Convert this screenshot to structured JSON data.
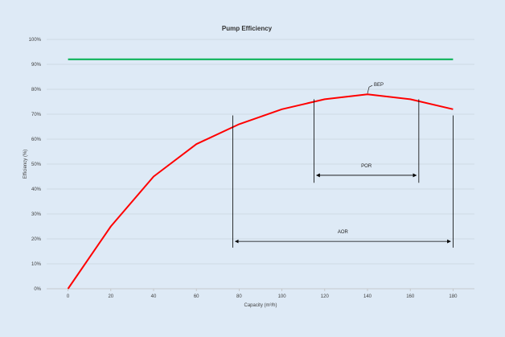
{
  "chart_data": {
    "type": "line",
    "title": "Pump Efficiency",
    "xlabel": "Capacity (m³/h)",
    "ylabel": "Efficiency (%)",
    "xlim": [
      -10,
      190
    ],
    "ylim": [
      0,
      100
    ],
    "x_ticks": [
      0,
      20,
      40,
      60,
      80,
      100,
      120,
      140,
      160,
      180
    ],
    "y_ticks": [
      0,
      10,
      20,
      30,
      40,
      50,
      60,
      70,
      80,
      90,
      100
    ],
    "y_tick_labels": [
      "0%",
      "10%",
      "20%",
      "30%",
      "40%",
      "50%",
      "60%",
      "70%",
      "80%",
      "90%",
      "100%"
    ],
    "grid": "horizontal",
    "series": [
      {
        "color": "#ff0000",
        "x": [
          0,
          20,
          40,
          60,
          80,
          100,
          120,
          140,
          160,
          180
        ],
        "y": [
          0,
          25,
          45,
          58,
          66,
          72,
          76,
          78,
          76,
          72
        ]
      },
      {
        "color": "#00b050",
        "x": [
          0,
          180
        ],
        "y": [
          92,
          92
        ]
      }
    ],
    "annotations": {
      "bep": {
        "label": "BEP",
        "x": 140,
        "y": 78
      },
      "por": {
        "label": "POR",
        "x_start": 115,
        "x_end": 164,
        "line_top": 76,
        "line_bottom": 42.5,
        "arrow_y": 45.5
      },
      "aor": {
        "label": "AOR",
        "x_start": 77,
        "x_end": 180,
        "line_top": 69.5,
        "line_bottom": 16.5,
        "arrow_y": 19
      }
    }
  }
}
